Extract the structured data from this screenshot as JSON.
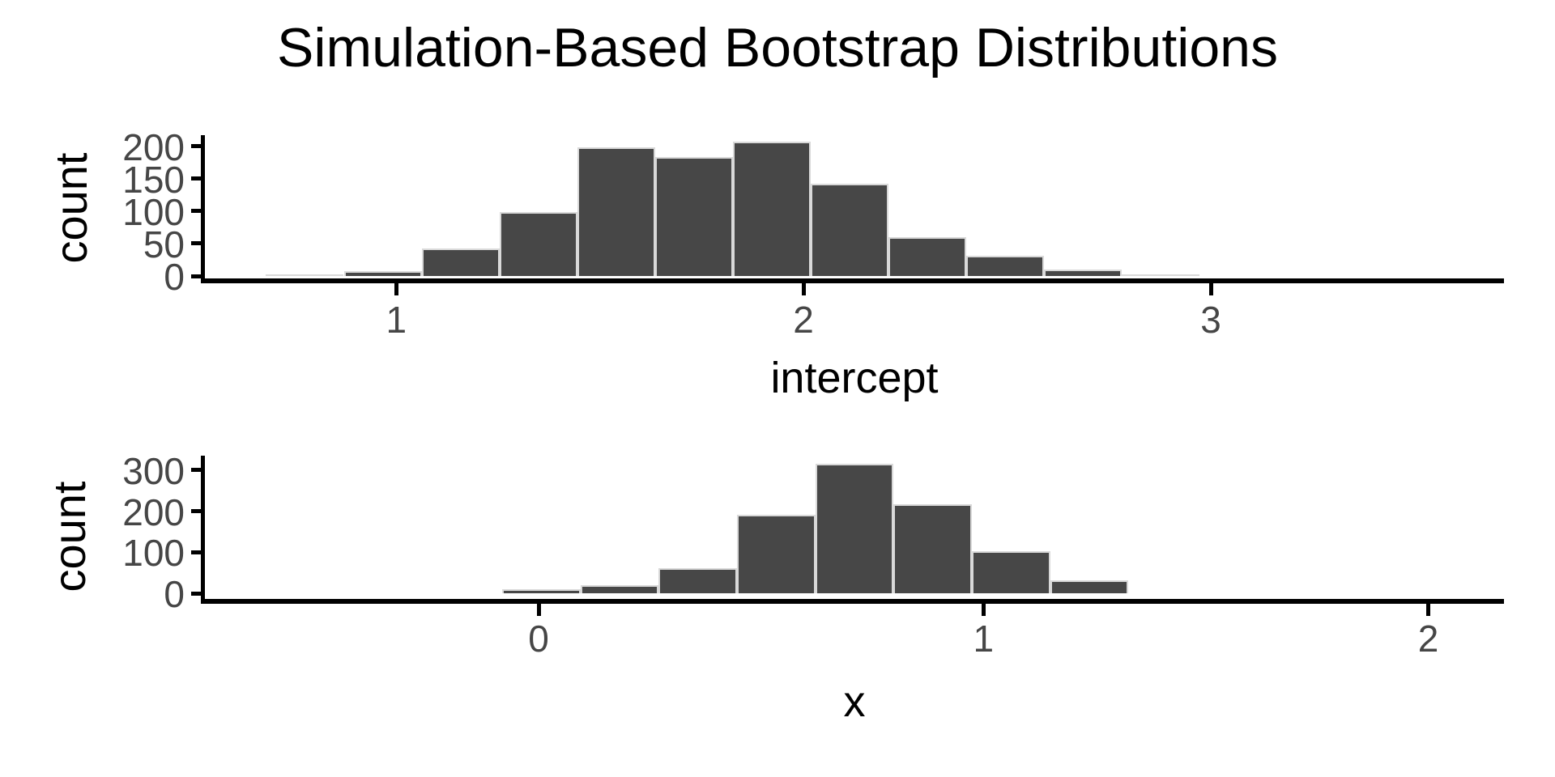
{
  "title": "Simulation-Based Bootstrap Distributions",
  "colors": {
    "bar_fill": "#474747",
    "bar_stroke": "#d9d9d9",
    "axis_line": "#000000",
    "tick_label_color": "#464646",
    "title_color": "#000000",
    "background": "#ffffff"
  },
  "chart_data": [
    {
      "type": "bar",
      "subtype": "histogram",
      "xlabel": "intercept",
      "ylabel": "count",
      "xticks": [
        1,
        2,
        3
      ],
      "yticks": [
        0,
        50,
        100,
        150,
        200
      ],
      "xlim": [
        0.53,
        3.72
      ],
      "ylim": [
        0,
        217
      ],
      "grid": "off",
      "legend": "none",
      "bins": {
        "bin_start": 0.68,
        "bin_width": 0.191,
        "counts": [
          2,
          7,
          43,
          99,
          198,
          184,
          207,
          142,
          60,
          31,
          10,
          2
        ]
      }
    },
    {
      "type": "bar",
      "subtype": "histogram",
      "xlabel": "x",
      "ylabel": "count",
      "xticks": [
        0,
        1,
        2
      ],
      "yticks": [
        0,
        100,
        200,
        300
      ],
      "xlim": [
        -0.75,
        2.17
      ],
      "ylim": [
        0,
        335
      ],
      "grid": "off",
      "legend": "none",
      "bins": {
        "bin_start": -0.082,
        "bin_width": 0.176,
        "counts": [
          10,
          19,
          61,
          191,
          315,
          217,
          103,
          31
        ]
      }
    }
  ]
}
